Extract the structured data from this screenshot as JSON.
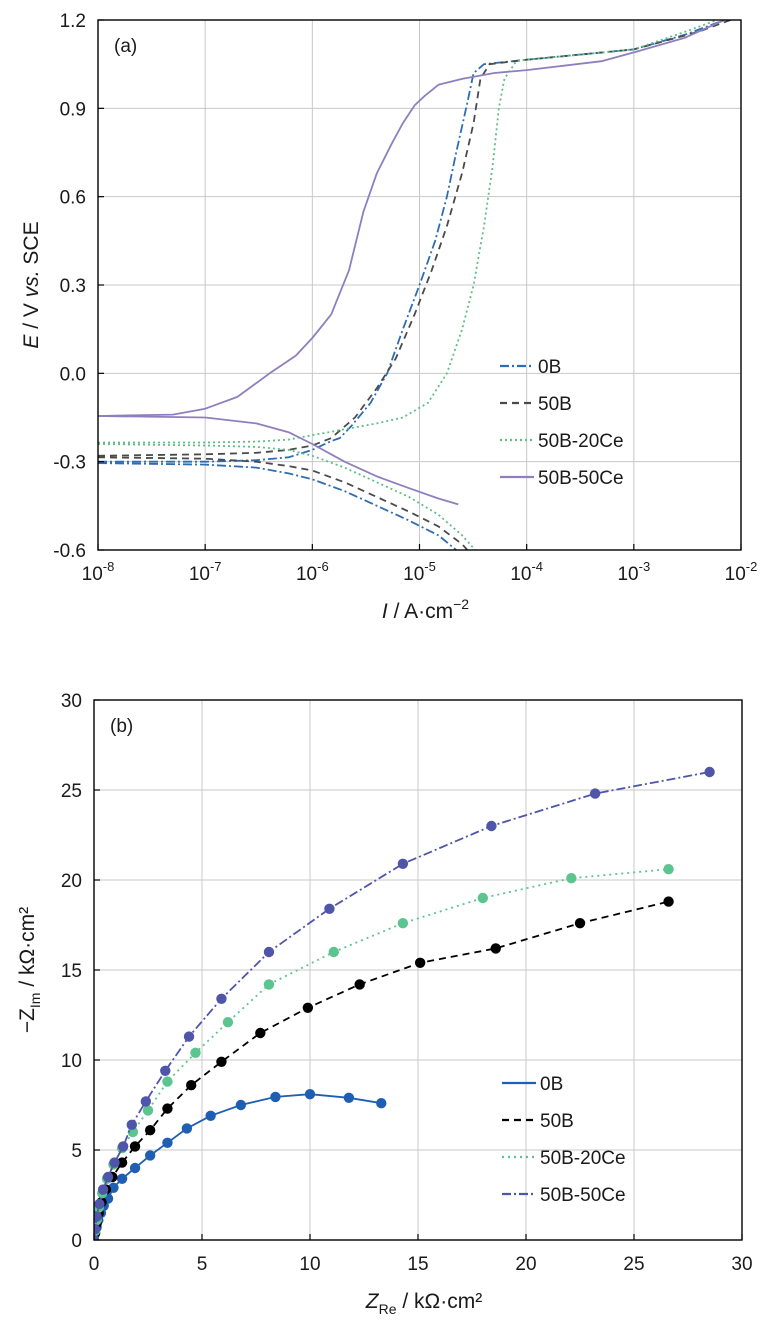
{
  "chart_data": [
    {
      "type": "line",
      "panel_label": "(a)",
      "xlabel": {
        "var": "I",
        "rest": " / A·cm",
        "sup": "−2"
      },
      "ylabel": {
        "var": "E",
        "mid": " / V ",
        "vs": "vs.",
        "rest": " SCE"
      },
      "xscale": "log",
      "xlim": [
        1e-08,
        0.01
      ],
      "ylim": [
        -0.6,
        1.2
      ],
      "x_ticks": [
        {
          "value": 1e-08,
          "base": "10",
          "exp": "-8"
        },
        {
          "value": 1e-07,
          "base": "10",
          "exp": "-7"
        },
        {
          "value": 1e-06,
          "base": "10",
          "exp": "-6"
        },
        {
          "value": 1e-05,
          "base": "10",
          "exp": "-5"
        },
        {
          "value": 0.0001,
          "base": "10",
          "exp": "-4"
        },
        {
          "value": 0.001,
          "base": "10",
          "exp": "-3"
        },
        {
          "value": 0.01,
          "base": "10",
          "exp": "-2"
        }
      ],
      "y_ticks": [
        {
          "value": -0.6,
          "label": "-0.6"
        },
        {
          "value": -0.3,
          "label": "-0.3"
        },
        {
          "value": 0.0,
          "label": "0.0"
        },
        {
          "value": 0.3,
          "label": "0.3"
        },
        {
          "value": 0.6,
          "label": "0.6"
        },
        {
          "value": 0.9,
          "label": "0.9"
        },
        {
          "value": 1.2,
          "label": "1.2"
        }
      ],
      "grid": true,
      "legend_position": "lower-right",
      "series": [
        {
          "name": "0B",
          "color": "#2e6db3",
          "dash": "9,3,2,3",
          "cathodic": [
            [
              1e-08,
              -0.305
            ],
            [
              1e-07,
              -0.31
            ],
            [
              3e-07,
              -0.32
            ],
            [
              6e-07,
              -0.34
            ],
            [
              1e-06,
              -0.36
            ],
            [
              2e-06,
              -0.4
            ],
            [
              4e-06,
              -0.45
            ],
            [
              8e-06,
              -0.5
            ],
            [
              1.5e-05,
              -0.55
            ],
            [
              2.2e-05,
              -0.6
            ]
          ],
          "anodic": [
            [
              1e-08,
              -0.3
            ],
            [
              1e-07,
              -0.3
            ],
            [
              3e-07,
              -0.295
            ],
            [
              6e-07,
              -0.285
            ],
            [
              1e-06,
              -0.26
            ],
            [
              1.5e-06,
              -0.23
            ],
            [
              1.8e-06,
              -0.22
            ],
            [
              2.3e-06,
              -0.18
            ],
            [
              3.5e-06,
              -0.1
            ],
            [
              5e-06,
              0.0
            ],
            [
              7e-06,
              0.15
            ],
            [
              1e-05,
              0.3
            ],
            [
              1.4e-05,
              0.45
            ],
            [
              1.8e-05,
              0.6
            ],
            [
              2.2e-05,
              0.75
            ],
            [
              2.8e-05,
              0.92
            ],
            [
              3.2e-05,
              1.02
            ],
            [
              4e-05,
              1.05
            ],
            [
              0.0001,
              1.065
            ],
            [
              0.001,
              1.1
            ],
            [
              0.003,
              1.15
            ],
            [
              0.007,
              1.2
            ]
          ]
        },
        {
          "name": "50B",
          "color": "#4a4a4a",
          "dash": "7,5",
          "cathodic": [
            [
              1e-08,
              -0.285
            ],
            [
              1e-07,
              -0.29
            ],
            [
              3e-07,
              -0.3
            ],
            [
              6e-07,
              -0.315
            ],
            [
              1e-06,
              -0.33
            ],
            [
              2e-06,
              -0.37
            ],
            [
              4e-06,
              -0.42
            ],
            [
              8e-06,
              -0.47
            ],
            [
              1.5e-05,
              -0.52
            ],
            [
              2.5e-05,
              -0.58
            ],
            [
              2.8e-05,
              -0.6
            ]
          ],
          "anodic": [
            [
              1e-08,
              -0.28
            ],
            [
              1e-07,
              -0.275
            ],
            [
              3e-07,
              -0.27
            ],
            [
              6e-07,
              -0.26
            ],
            [
              1e-06,
              -0.245
            ],
            [
              1.5e-06,
              -0.22
            ],
            [
              2.5e-06,
              -0.15
            ],
            [
              4e-06,
              -0.05
            ],
            [
              6e-06,
              0.05
            ],
            [
              9e-06,
              0.2
            ],
            [
              1.3e-05,
              0.35
            ],
            [
              1.8e-05,
              0.5
            ],
            [
              2.5e-05,
              0.68
            ],
            [
              3.2e-05,
              0.85
            ],
            [
              3.7e-05,
              1.0
            ],
            [
              4.5e-05,
              1.05
            ],
            [
              0.0001,
              1.065
            ],
            [
              0.001,
              1.1
            ],
            [
              0.004,
              1.16
            ],
            [
              0.008,
              1.2
            ]
          ]
        },
        {
          "name": "50B-20Ce",
          "color": "#5cbf86",
          "dash": "2,3",
          "cathodic": [
            [
              1e-08,
              -0.24
            ],
            [
              1e-07,
              -0.245
            ],
            [
              3e-07,
              -0.25
            ],
            [
              6e-07,
              -0.26
            ],
            [
              1e-06,
              -0.28
            ],
            [
              2e-06,
              -0.32
            ],
            [
              4e-06,
              -0.37
            ],
            [
              8e-06,
              -0.42
            ],
            [
              1.5e-05,
              -0.48
            ],
            [
              2.5e-05,
              -0.55
            ],
            [
              3.3e-05,
              -0.6
            ]
          ],
          "anodic": [
            [
              1e-08,
              -0.235
            ],
            [
              1e-07,
              -0.235
            ],
            [
              3e-07,
              -0.232
            ],
            [
              6e-07,
              -0.225
            ],
            [
              1e-06,
              -0.21
            ],
            [
              2e-06,
              -0.19
            ],
            [
              4e-06,
              -0.17
            ],
            [
              7e-06,
              -0.15
            ],
            [
              1.2e-05,
              -0.1
            ],
            [
              1.8e-05,
              0.0
            ],
            [
              2.5e-05,
              0.15
            ],
            [
              3.2e-05,
              0.3
            ],
            [
              4e-05,
              0.5
            ],
            [
              4.8e-05,
              0.7
            ],
            [
              5.5e-05,
              0.9
            ],
            [
              6.2e-05,
              1.0
            ],
            [
              8e-05,
              1.06
            ],
            [
              0.0001,
              1.065
            ],
            [
              0.001,
              1.1
            ],
            [
              0.003,
              1.16
            ],
            [
              0.006,
              1.2
            ]
          ]
        },
        {
          "name": "50B-50Ce",
          "color": "#8e7fbf",
          "dash": "",
          "cathodic": [
            [
              1e-08,
              -0.145
            ],
            [
              1e-07,
              -0.15
            ],
            [
              3e-07,
              -0.17
            ],
            [
              6e-07,
              -0.2
            ],
            [
              1e-06,
              -0.24
            ],
            [
              2e-06,
              -0.3
            ],
            [
              4e-06,
              -0.35
            ],
            [
              8e-06,
              -0.39
            ],
            [
              1.5e-05,
              -0.425
            ],
            [
              2.3e-05,
              -0.445
            ]
          ],
          "anodic": [
            [
              1e-08,
              -0.145
            ],
            [
              5e-08,
              -0.14
            ],
            [
              1e-07,
              -0.12
            ],
            [
              2e-07,
              -0.08
            ],
            [
              4e-07,
              0.0
            ],
            [
              7e-07,
              0.06
            ],
            [
              1e-06,
              0.12
            ],
            [
              1.5e-06,
              0.2
            ],
            [
              2.2e-06,
              0.35
            ],
            [
              3e-06,
              0.55
            ],
            [
              4e-06,
              0.68
            ],
            [
              5.5e-06,
              0.78
            ],
            [
              7e-06,
              0.85
            ],
            [
              9e-06,
              0.91
            ],
            [
              1.1e-05,
              0.94
            ],
            [
              1.5e-05,
              0.98
            ],
            [
              2.5e-05,
              1.0
            ],
            [
              5e-05,
              1.02
            ],
            [
              0.0001,
              1.03
            ],
            [
              0.0005,
              1.06
            ],
            [
              0.001,
              1.09
            ],
            [
              0.003,
              1.14
            ],
            [
              0.007,
              1.2
            ]
          ]
        }
      ]
    },
    {
      "type": "scatter",
      "panel_label": "(b)",
      "xlabel": {
        "var": "Z",
        "sub": "Re",
        "rest": " / kΩ·cm²"
      },
      "ylabel": {
        "pre": "−Z",
        "sub": "Im",
        "rest": " / kΩ·cm²"
      },
      "xlim": [
        0,
        30
      ],
      "ylim": [
        0,
        30
      ],
      "x_ticks": [
        0,
        5,
        10,
        15,
        20,
        25,
        30
      ],
      "y_ticks": [
        0,
        5,
        10,
        15,
        20,
        25,
        30
      ],
      "grid": true,
      "legend_position": "lower-right",
      "series": [
        {
          "name": "0B",
          "color": "#1f5fb3",
          "dash": "",
          "points": [
            [
              0,
              0
            ],
            [
              0.05,
              0.35
            ],
            [
              0.12,
              0.7
            ],
            [
              0.2,
              1.1
            ],
            [
              0.32,
              1.5
            ],
            [
              0.45,
              1.9
            ],
            [
              0.65,
              2.3
            ],
            [
              0.9,
              2.9
            ],
            [
              1.3,
              3.4
            ],
            [
              1.9,
              4.0
            ],
            [
              2.6,
              4.7
            ],
            [
              3.4,
              5.4
            ],
            [
              4.3,
              6.2
            ],
            [
              5.4,
              6.9
            ],
            [
              6.8,
              7.5
            ],
            [
              8.4,
              7.95
            ],
            [
              10.0,
              8.1
            ],
            [
              11.8,
              7.9
            ],
            [
              13.3,
              7.6
            ]
          ]
        },
        {
          "name": "50B",
          "color": "#000000",
          "dash": "7,5",
          "points": [
            [
              0,
              0
            ],
            [
              0.05,
              0.4
            ],
            [
              0.12,
              0.9
            ],
            [
              0.22,
              1.5
            ],
            [
              0.35,
              2.1
            ],
            [
              0.55,
              2.8
            ],
            [
              0.85,
              3.5
            ],
            [
              1.3,
              4.3
            ],
            [
              1.9,
              5.2
            ],
            [
              2.6,
              6.1
            ],
            [
              3.4,
              7.3
            ],
            [
              4.5,
              8.6
            ],
            [
              5.9,
              9.9
            ],
            [
              7.7,
              11.5
            ],
            [
              9.9,
              12.9
            ],
            [
              12.3,
              14.2
            ],
            [
              15.1,
              15.4
            ],
            [
              18.6,
              16.2
            ],
            [
              22.5,
              17.6
            ],
            [
              26.6,
              18.8
            ]
          ]
        },
        {
          "name": "50B-20Ce",
          "color": "#5cc48f",
          "dash": "2,4",
          "points": [
            [
              0,
              0
            ],
            [
              0.05,
              0.5
            ],
            [
              0.12,
              1.1
            ],
            [
              0.22,
              1.8
            ],
            [
              0.38,
              2.6
            ],
            [
              0.6,
              3.4
            ],
            [
              0.9,
              4.2
            ],
            [
              1.3,
              5.1
            ],
            [
              1.8,
              6.0
            ],
            [
              2.5,
              7.2
            ],
            [
              3.4,
              8.8
            ],
            [
              4.7,
              10.4
            ],
            [
              6.2,
              12.1
            ],
            [
              8.1,
              14.2
            ],
            [
              11.1,
              16.0
            ],
            [
              14.3,
              17.6
            ],
            [
              18.0,
              19.0
            ],
            [
              22.1,
              20.1
            ],
            [
              26.6,
              20.6
            ]
          ]
        },
        {
          "name": "50B-50Ce",
          "color": "#4f55a8",
          "dash": "9,3,2,3",
          "points": [
            [
              0,
              0
            ],
            [
              0.05,
              0.6
            ],
            [
              0.12,
              1.3
            ],
            [
              0.25,
              2.0
            ],
            [
              0.42,
              2.8
            ],
            [
              0.65,
              3.5
            ],
            [
              0.95,
              4.3
            ],
            [
              1.35,
              5.2
            ],
            [
              1.75,
              6.4
            ],
            [
              2.4,
              7.7
            ],
            [
              3.3,
              9.4
            ],
            [
              4.4,
              11.3
            ],
            [
              5.9,
              13.4
            ],
            [
              8.1,
              16.0
            ],
            [
              10.9,
              18.4
            ],
            [
              14.3,
              20.9
            ],
            [
              18.4,
              23.0
            ],
            [
              23.2,
              24.8
            ],
            [
              28.5,
              26.0
            ]
          ]
        }
      ]
    }
  ]
}
